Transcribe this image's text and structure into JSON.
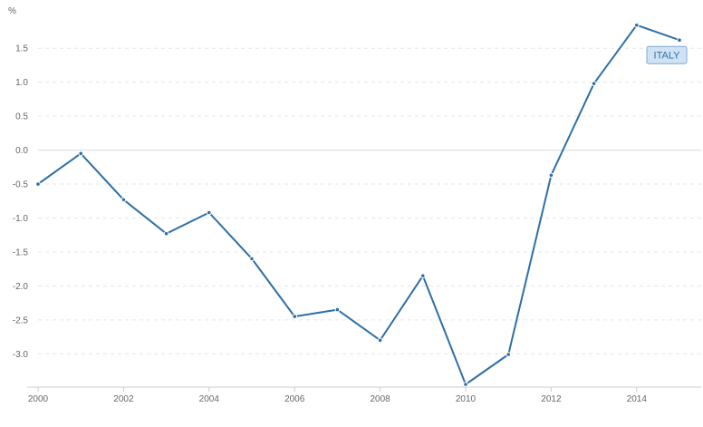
{
  "chart_data": {
    "type": "line",
    "title": "",
    "xlabel": "",
    "ylabel": "%",
    "x": [
      2000,
      2001,
      2002,
      2003,
      2004,
      2005,
      2006,
      2007,
      2008,
      2009,
      2010,
      2011,
      2012,
      2013,
      2014,
      2015
    ],
    "series": [
      {
        "name": "ITALY",
        "values": [
          -0.5,
          -0.05,
          -0.73,
          -1.23,
          -0.92,
          -1.6,
          -2.45,
          -2.35,
          -2.8,
          -1.85,
          -3.45,
          -3.01,
          -0.37,
          0.98,
          1.84,
          1.62
        ],
        "color": "#2f6fa6"
      }
    ],
    "xlim": [
      2000,
      2015.5
    ],
    "ylim": [
      -3.45,
      1.85
    ],
    "y_ticks": [
      "1.5",
      "1.0",
      "0.5",
      "0.0",
      "-0.5",
      "-1.0",
      "-1.5",
      "-2.0",
      "-2.5",
      "-3.0"
    ],
    "x_ticks": [
      "2000",
      "2002",
      "2004",
      "2006",
      "2008",
      "2010",
      "2012",
      "2014"
    ],
    "grid": "horizontal-dashed",
    "zero_line": true,
    "legend": "label-at-last-point",
    "colors": {
      "line": "#2f6fa6",
      "grid": "#e6e6e6",
      "zero_line": "#d9d9d9",
      "axis": "#cccccc",
      "tick_text": "#666666",
      "series_label_bg": "#cfe3f5",
      "series_label_border": "#7fa9d1"
    }
  }
}
